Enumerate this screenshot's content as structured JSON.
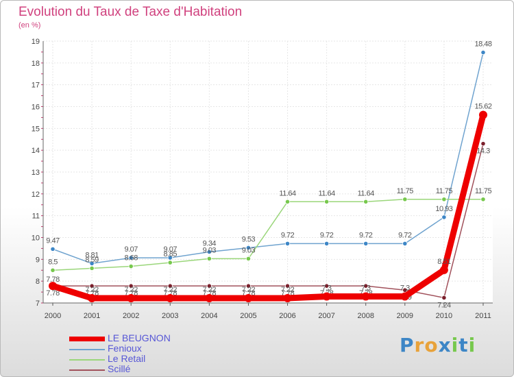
{
  "chart_data": {
    "type": "line",
    "title": "Evolution du Taux de Taxe d'Habitation",
    "subtitle": "(en %)",
    "xlabel": "",
    "ylabel": "(en %)",
    "ylim": [
      7,
      19
    ],
    "yticks": [
      7,
      8,
      9,
      10,
      11,
      12,
      13,
      14,
      15,
      16,
      17,
      18,
      19
    ],
    "categories": [
      "2000",
      "2001",
      "2002",
      "2003",
      "2004",
      "2005",
      "2006",
      "2007",
      "2008",
      "2009",
      "2010",
      "2011"
    ],
    "series": [
      {
        "name": "Fenioux",
        "color": "#6fa3cf",
        "marker": "#3d86c6",
        "values": [
          9.47,
          8.81,
          9.07,
          9.07,
          9.34,
          9.53,
          9.72,
          9.72,
          9.72,
          9.72,
          10.93,
          18.48
        ],
        "labels": [
          "9.47",
          "8.81",
          "9.07",
          "9.07",
          "9.34",
          "9.53",
          "9.72",
          "9.72",
          "9.72",
          "9.72",
          "10.93",
          "18.48"
        ]
      },
      {
        "name": "Le Retail",
        "color": "#9ad67a",
        "marker": "#77c84d",
        "values": [
          8.5,
          8.59,
          8.68,
          8.85,
          9.03,
          9.03,
          11.64,
          11.64,
          11.64,
          11.75,
          11.75,
          11.75
        ],
        "labels": [
          "8.5",
          "8.59",
          "8.68",
          "8.85",
          "9.03",
          "9.03",
          "11.64",
          "11.64",
          "11.64",
          "11.75",
          "11.75",
          "11.75"
        ]
      },
      {
        "name": "Scillé",
        "color": "#a1515b",
        "marker": "#7b1f2b",
        "values": [
          7.78,
          7.78,
          7.78,
          7.78,
          7.78,
          7.78,
          7.78,
          7.78,
          7.78,
          7.59,
          7.24,
          14.3
        ],
        "labels": [
          "7.78",
          "7.78",
          "7.78",
          "7.78",
          "7.78",
          "7.78",
          "7.78",
          "7.78",
          "7.78",
          "7.59",
          "7.24",
          "14.3"
        ]
      },
      {
        "name": "LE BEUGNON",
        "color": "#ee0000",
        "marker": "#ee0000",
        "values": [
          7.78,
          7.22,
          7.22,
          7.22,
          7.22,
          7.22,
          7.22,
          7.3,
          7.3,
          7.3,
          8.51,
          15.62
        ],
        "labels": [
          "7.78",
          "7.22",
          "7.22",
          "7.22",
          "7.22",
          "7.22",
          "7.22",
          "7.3",
          "7.3",
          "7.3",
          "8.51",
          "15.62"
        ]
      }
    ],
    "legend": [
      {
        "name": "LE BEUGNON",
        "color": "#ee0000",
        "weight": "thick"
      },
      {
        "name": "Fenioux",
        "color": "#6fa3cf",
        "weight": "thin"
      },
      {
        "name": "Le Retail",
        "color": "#9ad67a",
        "weight": "thin"
      },
      {
        "name": "Scillé",
        "color": "#a1515b",
        "weight": "thin"
      }
    ],
    "legend_position": "bottom-left"
  },
  "logo": {
    "letters": [
      "P",
      "r",
      "o",
      "x",
      "i",
      "t",
      "i"
    ],
    "colors": [
      "#3d86c6",
      "#e8a23a",
      "#e8a23a",
      "#3d86c6",
      "#77c84d",
      "#3d86c6",
      "#77c84d"
    ]
  }
}
